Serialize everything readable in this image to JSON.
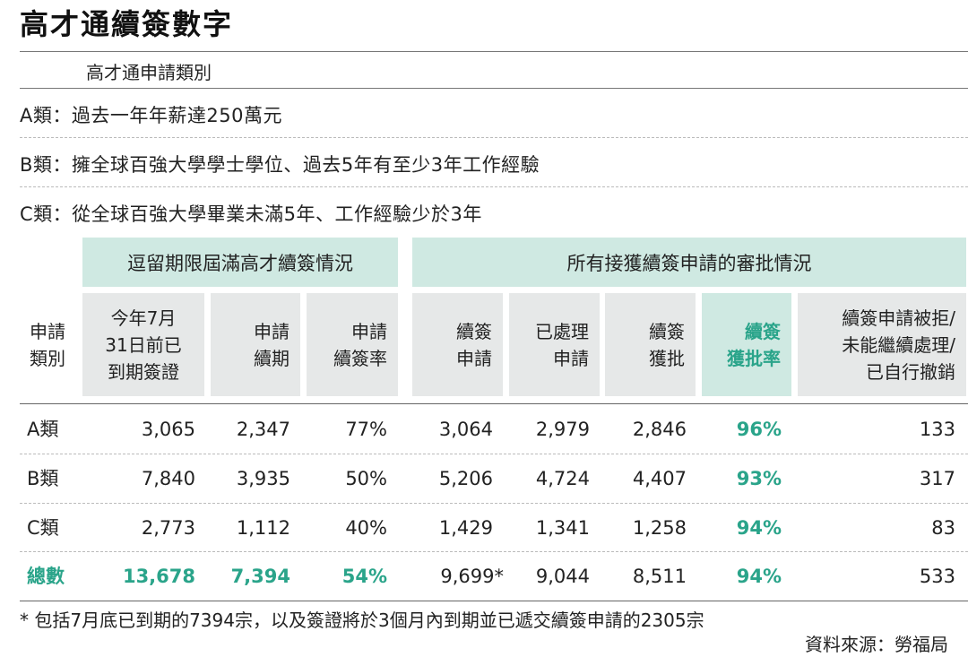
{
  "title": "高才通續簽數字",
  "subtitle": "高才通申請類別",
  "categories": [
    {
      "key": "A類：",
      "desc": "過去一年年薪達250萬元"
    },
    {
      "key": "B類：",
      "desc": "擁全球百強大學學士學位、過去5年有至少3年工作經驗"
    },
    {
      "key": "C類：",
      "desc": "從全球百強大學畢業未滿5年、工作經驗少於3年"
    }
  ],
  "groups": {
    "left": "逗留期限屆滿高才續簽情況",
    "right": "所有接獲續簽申請的審批情況"
  },
  "headers": {
    "app_type": [
      "申請",
      "類別"
    ],
    "expired": [
      "今年7月",
      "31日前已",
      "到期簽證"
    ],
    "renewal_apps": [
      "申請",
      "續期"
    ],
    "renewal_rate": [
      "申請",
      "續簽率"
    ],
    "renew_apps_all": [
      "續簽",
      "申請"
    ],
    "processed": [
      "已處理",
      "申請"
    ],
    "approved": [
      "續簽",
      "獲批"
    ],
    "approval_rate": [
      "續簽",
      "獲批率"
    ],
    "rejected": [
      "續簽申請被拒/",
      "未能繼續處理/",
      "已自行撤銷"
    ]
  },
  "rows": [
    {
      "type": "A類",
      "expired": "3,065",
      "renewal_apps": "2,347",
      "renewal_rate": "77%",
      "renew_apps_all": "3,064",
      "processed": "2,979",
      "approved": "2,846",
      "approval_rate": "96%",
      "rejected": "133"
    },
    {
      "type": "B類",
      "expired": "7,840",
      "renewal_apps": "3,935",
      "renewal_rate": "50%",
      "renew_apps_all": "5,206",
      "processed": "4,724",
      "approved": "4,407",
      "approval_rate": "93%",
      "rejected": "317"
    },
    {
      "type": "C類",
      "expired": "2,773",
      "renewal_apps": "1,112",
      "renewal_rate": "40%",
      "renew_apps_all": "1,429",
      "processed": "1,341",
      "approved": "1,258",
      "approval_rate": "94%",
      "rejected": "83"
    }
  ],
  "total": {
    "type": "總數",
    "expired": "13,678",
    "renewal_apps": "7,394",
    "renewal_rate": "54%",
    "renew_apps_all": "9,699*",
    "processed": "9,044",
    "approved": "8,511",
    "approval_rate": "94%",
    "rejected": "533"
  },
  "footnote": "* 包括7月底已到期的7394宗，以及簽證將於3個月內到期並已遞交續簽申請的2305宗",
  "source": "資料來源：勞福局",
  "colors": {
    "accent_green": "#2aa48a",
    "header_green": "#cfe9e2",
    "header_grey": "#e6e8e8"
  }
}
